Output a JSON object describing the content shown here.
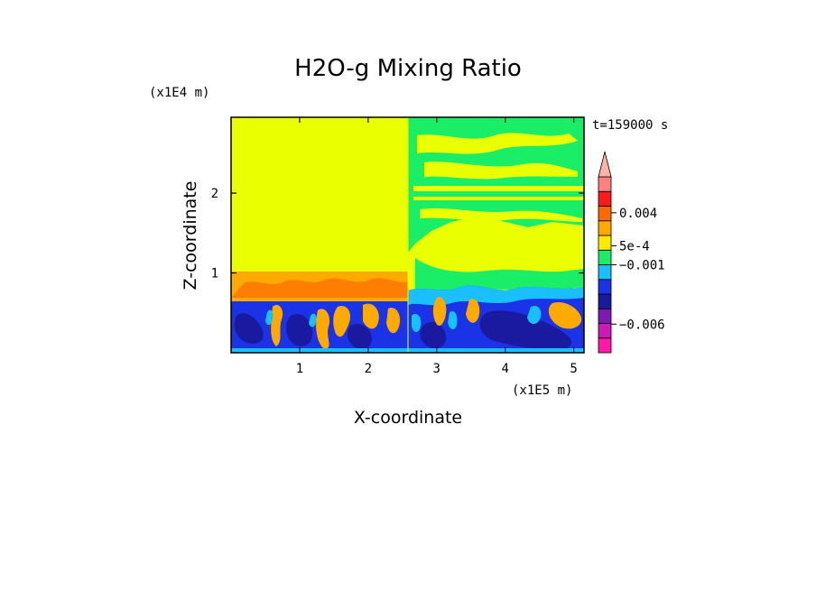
{
  "chart_data": {
    "type": "heatmap",
    "title": "H2O-g Mixing Ratio",
    "xlabel": "X-coordinate",
    "ylabel": "Z-coordinate",
    "x_scale_label": "(x1E5 m)",
    "y_scale_label": "(x1E4 m)",
    "time_label": "t=159000 s",
    "xlim": [
      0,
      5.15
    ],
    "ylim": [
      0,
      2.95
    ],
    "x_ticks": [
      {
        "value": 1,
        "label": "1"
      },
      {
        "value": 2,
        "label": "2"
      },
      {
        "value": 3,
        "label": "3"
      },
      {
        "value": 4,
        "label": "4"
      },
      {
        "value": 5,
        "label": "5"
      }
    ],
    "y_ticks": [
      {
        "value": 1,
        "label": "1"
      },
      {
        "value": 2,
        "label": "2"
      }
    ],
    "colorbar": {
      "colors": [
        "#ff1aa6",
        "#cc1ab3",
        "#7a1ab3",
        "#1a1aa0",
        "#1a33e6",
        "#1abfff",
        "#1aee66",
        "#ffea00",
        "#ffaa00",
        "#ff6a00",
        "#ff1a1a",
        "#ff8080"
      ],
      "extend_max_color": "#ffb3a6",
      "labels": [
        {
          "text": "0.004",
          "at_level": 9.55
        },
        {
          "text": "5e-4",
          "at_level": 7.3
        },
        {
          "text": "−0.001",
          "at_level": 6.0
        },
        {
          "text": "−0.006",
          "at_level": 1.95
        }
      ]
    },
    "regions": [
      {
        "name": "upper-troposphere-left",
        "x": [
          0,
          2.55
        ],
        "z": [
          1.02,
          2.95
        ],
        "color": "#eaff00"
      },
      {
        "name": "upper-troposphere-right",
        "x": [
          2.55,
          5.15
        ],
        "z": [
          0.75,
          2.95
        ],
        "color": "#1aee66"
      },
      {
        "name": "mid-level-band-left",
        "x": [
          0,
          2.55
        ],
        "z": [
          0.72,
          1.02
        ],
        "color": "#ffaa00"
      },
      {
        "name": "boundary-layer",
        "x": [
          0,
          5.15
        ],
        "z": [
          0,
          0.72
        ],
        "color": "#1a33e6"
      }
    ]
  }
}
